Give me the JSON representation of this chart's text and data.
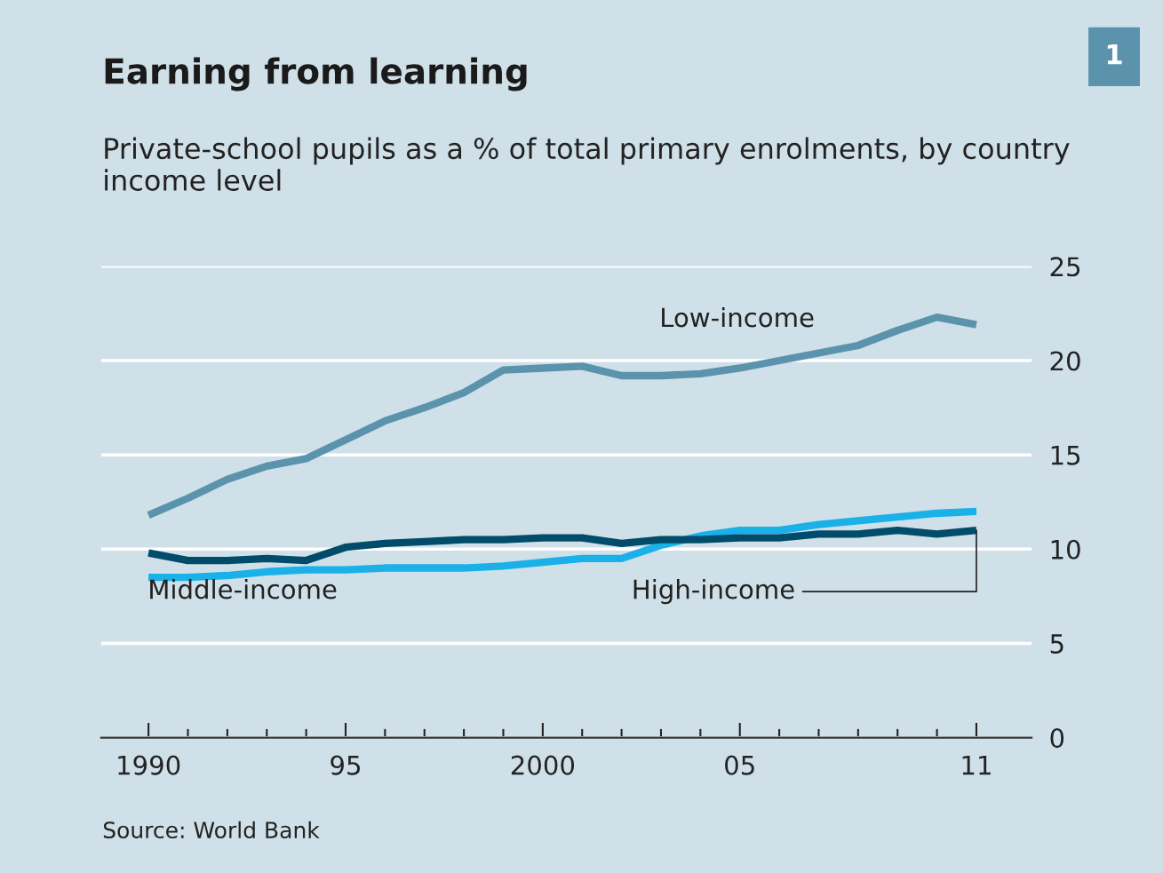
{
  "chart_data": {
    "type": "line",
    "title": "Earning from learning",
    "subtitle": "Private-school pupils as a % of total primary enrolments, by country income level",
    "annotations": [
      "Source: World Bank",
      "1"
    ],
    "x": [
      1990,
      1991,
      1992,
      1993,
      1994,
      1995,
      1996,
      1997,
      1998,
      1999,
      2000,
      2001,
      2002,
      2003,
      2004,
      2005,
      2006,
      2007,
      2008,
      2009,
      2010,
      2011
    ],
    "series": [
      {
        "name": "Low-income",
        "color": "#5b93ad",
        "values": [
          11.8,
          12.7,
          13.7,
          14.4,
          14.8,
          15.8,
          16.8,
          17.5,
          18.3,
          19.5,
          19.6,
          19.7,
          19.2,
          19.2,
          19.3,
          19.6,
          20.0,
          20.4,
          20.8,
          21.6,
          22.3,
          21.9
        ]
      },
      {
        "name": "Middle-income",
        "color": "#1ab0e8",
        "values": [
          8.5,
          8.5,
          8.6,
          8.8,
          8.9,
          8.9,
          9.0,
          9.0,
          9.0,
          9.1,
          9.3,
          9.5,
          9.5,
          10.2,
          10.7,
          11.0,
          11.0,
          11.3,
          11.5,
          11.7,
          11.9,
          12.0
        ]
      },
      {
        "name": "High-income",
        "color": "#004c6a",
        "values": [
          9.8,
          9.4,
          9.4,
          9.5,
          9.4,
          10.1,
          10.3,
          10.4,
          10.5,
          10.5,
          10.6,
          10.6,
          10.3,
          10.5,
          10.5,
          10.6,
          10.6,
          10.8,
          10.8,
          11.0,
          10.8,
          11.0
        ]
      }
    ],
    "xlim": [
      1988.8,
      2012.4
    ],
    "xticks": [
      {
        "value": 1990,
        "label": "1990"
      },
      {
        "value": 1991,
        "label": null
      },
      {
        "value": 1992,
        "label": null
      },
      {
        "value": 1993,
        "label": null
      },
      {
        "value": 1994,
        "label": null
      },
      {
        "value": 1995,
        "label": "95"
      },
      {
        "value": 1996,
        "label": null
      },
      {
        "value": 1997,
        "label": null
      },
      {
        "value": 1998,
        "label": null
      },
      {
        "value": 1999,
        "label": null
      },
      {
        "value": 2000,
        "label": "2000"
      },
      {
        "value": 2001,
        "label": null
      },
      {
        "value": 2002,
        "label": null
      },
      {
        "value": 2003,
        "label": null
      },
      {
        "value": 2004,
        "label": null
      },
      {
        "value": 2005,
        "label": "05"
      },
      {
        "value": 2006,
        "label": null
      },
      {
        "value": 2007,
        "label": null
      },
      {
        "value": 2008,
        "label": null
      },
      {
        "value": 2009,
        "label": null
      },
      {
        "value": 2010,
        "label": null
      },
      {
        "value": 2011,
        "label": "11"
      }
    ],
    "ylim": [
      0,
      25
    ],
    "yticks": [
      0,
      5,
      10,
      15,
      20,
      25
    ],
    "grid": "y",
    "legend": false,
    "marker": "none",
    "line_style": "solid"
  }
}
